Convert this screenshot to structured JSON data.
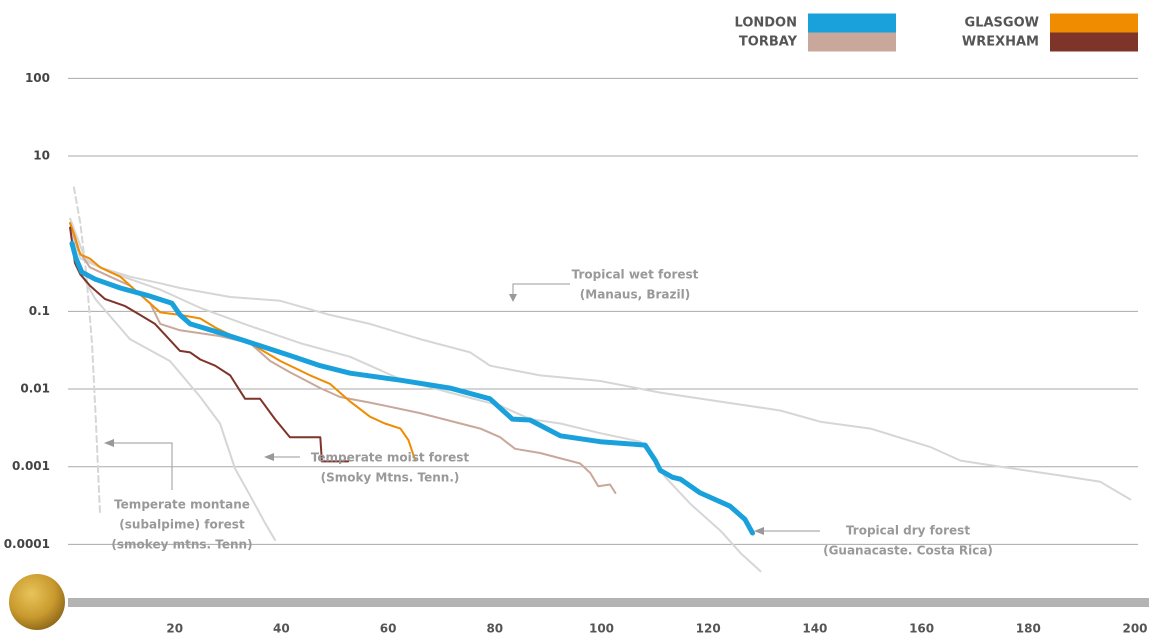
{
  "chart_data": {
    "type": "line",
    "log_y": true,
    "grid": true,
    "legend": "top-right",
    "xlim": [
      0,
      200
    ],
    "xticks": [
      20,
      40,
      60,
      80,
      100,
      120,
      140,
      160,
      180,
      200
    ],
    "ylim": [
      3e-05,
      200
    ],
    "yticks": [
      100,
      10,
      0.1,
      0.01,
      0.001,
      0.0001
    ],
    "series": [
      {
        "color": "#d6d6d6",
        "dashed": true,
        "x": [
          1.1,
          2.3,
          3.4,
          4.5,
          5.25,
          6
        ],
        "values": [
          3.96,
          1.37,
          0.32,
          0.039,
          0.0036,
          0.00025
        ]
      },
      {
        "color": "#d6d6d6",
        "x": [
          0.4,
          2.3,
          5.1,
          11.6,
          19.1,
          24.8,
          28.5,
          31.3,
          34.1,
          36.9,
          38.8
        ],
        "values": [
          1.2,
          0.32,
          0.145,
          0.044,
          0.023,
          0.0079,
          0.0036,
          0.00095,
          0.00043,
          0.00019,
          0.000114
        ]
      },
      {
        "color": "#d6d6d6",
        "x": [
          0.4,
          2.3,
          6,
          11.6,
          17.3,
          21,
          24.8,
          30.4,
          39.8,
          49.1,
          56.6,
          66,
          75.4,
          79.1,
          88.5,
          99.8,
          111,
          122.3,
          133.5,
          141,
          150.4,
          161.6,
          167.3,
          174.8,
          186,
          193.5,
          199.1
        ],
        "values": [
          1.37,
          0.48,
          0.37,
          0.28,
          0.23,
          0.2,
          0.18,
          0.153,
          0.137,
          0.09,
          0.069,
          0.044,
          0.0296,
          0.02,
          0.015,
          0.0127,
          0.009,
          0.0069,
          0.0053,
          0.0038,
          0.0031,
          0.0018,
          0.0012,
          0.001,
          0.00077,
          0.00064,
          0.00038
        ]
      },
      {
        "color": "#d6d6d6",
        "x": [
          0.4,
          3.2,
          7.9,
          17.3,
          24.8,
          34.1,
          43.5,
          52.9,
          62.3,
          71.6,
          81,
          86.6,
          92.3,
          99.8,
          107.3,
          112,
          116.7,
          122.3,
          126.1,
          129.8
        ],
        "values": [
          1.57,
          0.48,
          0.32,
          0.19,
          0.111,
          0.065,
          0.039,
          0.026,
          0.0134,
          0.009,
          0.0061,
          0.0041,
          0.0036,
          0.0027,
          0.0021,
          0.00073,
          0.00033,
          0.00015,
          7.7e-05,
          4.5e-05
        ]
      },
      {
        "name": "TORBAY",
        "color": "#c9a89b",
        "x": [
          0.4,
          1.9,
          4.1,
          7.9,
          11.6,
          15.4,
          17.3,
          21,
          28.5,
          34.1,
          37.9,
          41.6,
          47.3,
          51,
          56.6,
          66,
          77.3,
          81,
          83.8,
          88.5,
          96,
          97.9,
          99.4,
          101.6,
          102.6
        ],
        "values": [
          1.37,
          0.62,
          0.37,
          0.28,
          0.215,
          0.127,
          0.069,
          0.057,
          0.048,
          0.039,
          0.023,
          0.0165,
          0.0103,
          0.0079,
          0.0067,
          0.0049,
          0.0031,
          0.0024,
          0.0017,
          0.0015,
          0.0011,
          0.00083,
          0.00056,
          0.00059,
          0.00046
        ]
      },
      {
        "name": "GLASGOW",
        "color": "#ef8c00",
        "x": [
          0.4,
          1.3,
          2.3,
          4.1,
          6,
          9.8,
          13.5,
          17.3,
          21,
          24.8,
          27.6,
          30.4,
          34.1,
          39.8,
          45.4,
          49.1,
          52.9,
          56.6,
          59.4,
          62.3,
          63.8,
          65.1
        ],
        "values": [
          1.37,
          0.92,
          0.54,
          0.48,
          0.37,
          0.28,
          0.165,
          0.097,
          0.09,
          0.081,
          0.062,
          0.05,
          0.039,
          0.023,
          0.015,
          0.0117,
          0.0069,
          0.0044,
          0.0036,
          0.0031,
          0.0022,
          0.0012
        ]
      },
      {
        "name": "WREXHAM",
        "color": "#7f342a",
        "x": [
          0.4,
          1.3,
          2.3,
          4.1,
          6.9,
          10.7,
          13.5,
          16.3,
          18.2,
          21,
          22.9,
          24.8,
          27.6,
          30.4,
          33.2,
          36,
          38.8,
          41.6,
          47.3,
          47.6,
          52.5
        ],
        "values": [
          1.2,
          0.42,
          0.3,
          0.215,
          0.145,
          0.117,
          0.09,
          0.069,
          0.05,
          0.031,
          0.0296,
          0.024,
          0.02,
          0.015,
          0.0075,
          0.0075,
          0.0041,
          0.0024,
          0.0024,
          0.00117,
          0.00117
        ]
      },
      {
        "name": "LONDON",
        "color": "#1aa1dc",
        "thick": true,
        "x": [
          0.75,
          1.5,
          2.6,
          5.1,
          9.8,
          15.4,
          19.5,
          21,
          22.9,
          28.5,
          36,
          41.6,
          47.3,
          52.9,
          62.3,
          71.6,
          79.1,
          81,
          83.3,
          86.6,
          92.3,
          99.8,
          108.2,
          110.1,
          111,
          113.3,
          114.8,
          118.5,
          124.1,
          126.9,
          128.3
        ],
        "values": [
          0.75,
          0.48,
          0.32,
          0.26,
          0.2,
          0.157,
          0.127,
          0.09,
          0.069,
          0.053,
          0.036,
          0.027,
          0.02,
          0.016,
          0.013,
          0.0103,
          0.0075,
          0.0057,
          0.0041,
          0.004,
          0.0025,
          0.0021,
          0.0019,
          0.0012,
          0.0009,
          0.00073,
          0.00069,
          0.00046,
          0.00031,
          0.00021,
          0.00014
        ]
      }
    ],
    "annotations": [
      {
        "lines": [
          "Tropical wet forest",
          "(Manaus, Brazil)"
        ]
      },
      {
        "lines": [
          "Temperate moist forest",
          "(Smoky Mtns. Tenn.)"
        ]
      },
      {
        "lines": [
          "Temperate montane",
          "(subalpime) forest",
          "(smokey mtns. Tenn)"
        ]
      },
      {
        "lines": [
          "Tropical dry forest",
          "(Guanacaste. Costa Rica)"
        ]
      }
    ]
  }
}
